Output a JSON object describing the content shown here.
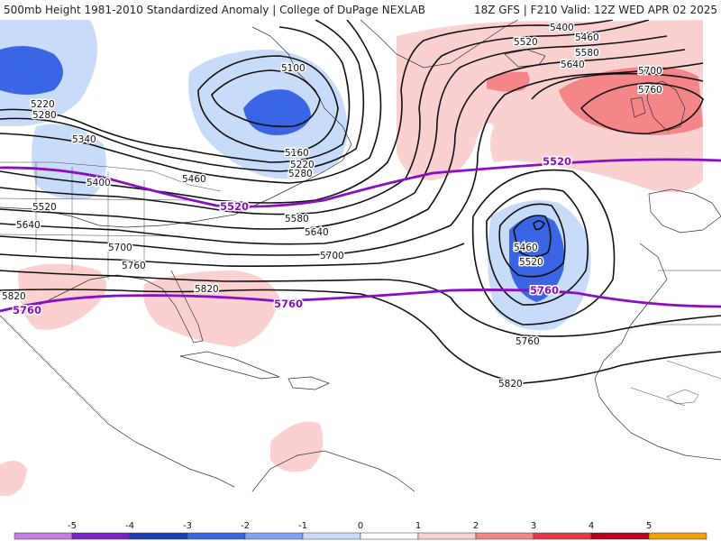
{
  "header": {
    "left_title": "500mb Height 1981-2010 Standardized Anomaly | College of DuPage NEXLAB",
    "right_title": "18Z GFS | F210 Valid: 12Z WED APR 02 2025"
  },
  "contour_labels": {
    "c5400_top": "5400",
    "c5460_top": "5460",
    "c5520_top": "5520",
    "c5580_top": "5580",
    "c5640_top": "5640",
    "c5700_top": "5700",
    "c5760_uk": "5760",
    "c5100": "5100",
    "c5160": "5160",
    "c5220_ne": "5220",
    "c5280_ne": "5280",
    "c5220_nw": "5220",
    "c5280_nw": "5280",
    "c5340": "5340",
    "c5400_w": "5400",
    "c5460_w": "5460",
    "c5520_w": "5520",
    "c5580_c": "5580",
    "c5640_w": "5640",
    "c5640_c": "5640",
    "c5700_w": "5700",
    "c5700_c": "5700",
    "c5760_w": "5760",
    "c5820_c": "5820",
    "c5820_w": "5820",
    "c5460_low": "5460",
    "c5520_low": "5520",
    "c5760_atl": "5760",
    "c5820_atl": "5820"
  },
  "purple_labels": {
    "p5520_east": "5520",
    "p5520_west": "5520",
    "p5760_west": "5760",
    "p5760_center": "5760",
    "p5760_east": "5760"
  },
  "colorbar": {
    "ticks": [
      "-5",
      "-4",
      "-3",
      "-2",
      "-1",
      "0",
      "1",
      "2",
      "3",
      "4",
      "5"
    ],
    "colors": [
      "#c77ce8",
      "#7d20c8",
      "#1a3fb8",
      "#3a66e6",
      "#7fa6f2",
      "#c8dcfa",
      "#ffffff",
      "#fbd0d0",
      "#f4868a",
      "#e63946",
      "#b8001f",
      "#f59f00"
    ]
  },
  "colors": {
    "contour": "#111111",
    "thick_contour": "#8a0fc4",
    "neg_light": "#c8dcfa",
    "neg_mid": "#7fa6f2",
    "neg_strong": "#3a66e6",
    "pos_light": "#fbd0d0",
    "pos_mid": "#f4868a"
  }
}
